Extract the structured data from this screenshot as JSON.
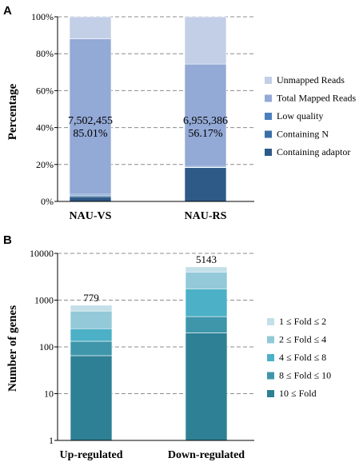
{
  "panels": {
    "a": {
      "label": "A"
    },
    "b": {
      "label": "B"
    }
  },
  "chart_data": [
    {
      "type": "bar",
      "stacked": true,
      "panel": "A",
      "title": "",
      "xlabel": "",
      "ylabel": "Percentage",
      "ylim": [
        0,
        100
      ],
      "yticks": [
        "0%",
        "20%",
        "40%",
        "60%",
        "80%",
        "100%"
      ],
      "ytick_values": [
        0,
        20,
        40,
        60,
        80,
        100
      ],
      "grid": "horizontal dashed",
      "legend_position": "right",
      "categories": [
        "NAU-VS",
        "NAU-RS"
      ],
      "series": [
        {
          "name": "Containing adaptor",
          "color": "#2e5a87",
          "values": [
            2.6,
            18.3
          ]
        },
        {
          "name": "Containing N",
          "color": "#3a6fa8",
          "values": [
            0.6,
            0.2
          ]
        },
        {
          "name": "Low quality",
          "color": "#4a7fbf",
          "values": [
            0.7,
            0.5
          ]
        },
        {
          "name": "Total Mapped Reads",
          "color": "#93a9d6",
          "values": [
            84.2,
            55.4
          ]
        },
        {
          "name": "Unmapped Reads",
          "color": "#c3cfe7",
          "values": [
            11.9,
            25.6
          ]
        }
      ],
      "annotations": [
        {
          "category": "NAU-VS",
          "lines": [
            "7,502,455",
            "85.01%"
          ]
        },
        {
          "category": "NAU-RS",
          "lines": [
            "6,955,386",
            "56.17%"
          ]
        }
      ]
    },
    {
      "type": "bar",
      "stacked": true,
      "panel": "B",
      "title": "",
      "xlabel": "",
      "ylabel": "Number of genes",
      "yscale": "log",
      "ylim": [
        1,
        10000
      ],
      "yticks": [
        "1",
        "10",
        "100",
        "1000",
        "10000"
      ],
      "ytick_values": [
        1,
        10,
        100,
        1000,
        10000
      ],
      "grid": "horizontal dashed",
      "legend_position": "right",
      "categories": [
        "Up-regulated",
        "Down-regulated"
      ],
      "series": [
        {
          "name": "10 ≤ Fold",
          "color": "#2e8095",
          "values": [
            65,
            200
          ]
        },
        {
          "name": "8 ≤ Fold ≤ 10",
          "color": "#3f96ab",
          "values": [
            67,
            245
          ]
        },
        {
          "name": "4 ≤ Fold ≤ 8",
          "color": "#4cb0c7",
          "values": [
            113,
            1305
          ]
        },
        {
          "name": "2 ≤ Fold ≤ 4",
          "color": "#93c9d8",
          "values": [
            340,
            2250
          ]
        },
        {
          "name": "1 ≤ Fold ≤ 2",
          "color": "#c4dfe8",
          "values": [
            194,
            1143
          ]
        }
      ],
      "totals": [
        "779",
        "5143"
      ]
    }
  ]
}
